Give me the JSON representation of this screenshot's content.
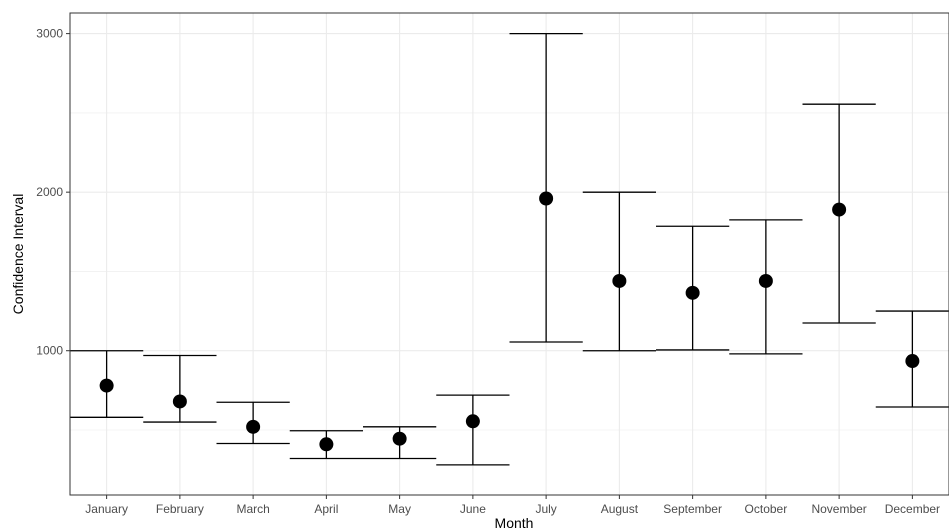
{
  "chart_data": {
    "type": "errorbar",
    "title": "",
    "xlabel": "Month",
    "ylabel": "Confidence Interval",
    "categories": [
      "January",
      "February",
      "March",
      "April",
      "May",
      "June",
      "July",
      "August",
      "September",
      "October",
      "November",
      "December"
    ],
    "values": [
      780,
      680,
      520,
      410,
      445,
      555,
      1960,
      1440,
      1365,
      1440,
      1890,
      935
    ],
    "lower": [
      580,
      550,
      415,
      320,
      320,
      280,
      1055,
      1000,
      1005,
      980,
      1175,
      645
    ],
    "upper": [
      1000,
      970,
      675,
      495,
      520,
      720,
      3000,
      2000,
      1785,
      1825,
      2555,
      1250
    ],
    "yticks": [
      1000,
      2000,
      3000
    ],
    "ylim": [
      90,
      3130
    ],
    "grid": true,
    "colors": {
      "point": "#000000",
      "grid": "#ebebeb",
      "panel_border": "#333333"
    }
  }
}
